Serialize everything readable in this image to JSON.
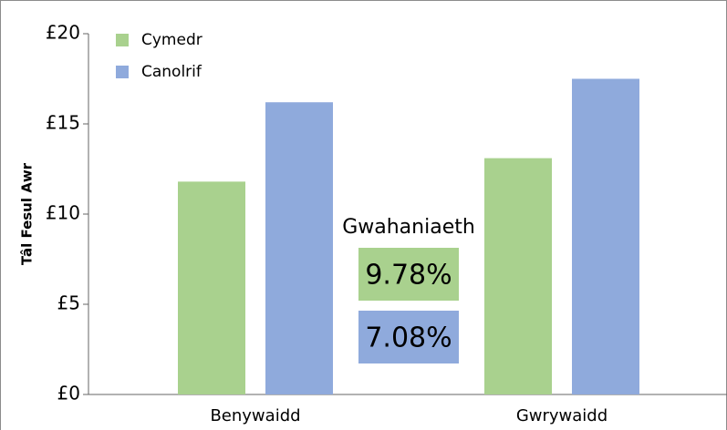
{
  "chart_data": {
    "type": "bar",
    "ylabel": "Tâl Fesul Awr",
    "categories": [
      "Benywaidd",
      "Gwrywaidd"
    ],
    "series": [
      {
        "name": "Cymedr",
        "color": "#a9d18e",
        "values": [
          11.8,
          13.1
        ]
      },
      {
        "name": "Canolrif",
        "color": "#8faadc",
        "values": [
          16.2,
          17.5
        ]
      }
    ],
    "ylim": [
      0,
      20
    ],
    "yticks": [
      {
        "value": 0,
        "label": "£0"
      },
      {
        "value": 5,
        "label": "£5"
      },
      {
        "value": 10,
        "label": "£10"
      },
      {
        "value": 15,
        "label": "£15"
      },
      {
        "value": 20,
        "label": "£20"
      }
    ],
    "legend": "top-left",
    "annotation": {
      "title": "Gwahaniaeth",
      "values": [
        9.78,
        7.08
      ],
      "value_labels": [
        "9.78%",
        "7.08%"
      ]
    }
  }
}
